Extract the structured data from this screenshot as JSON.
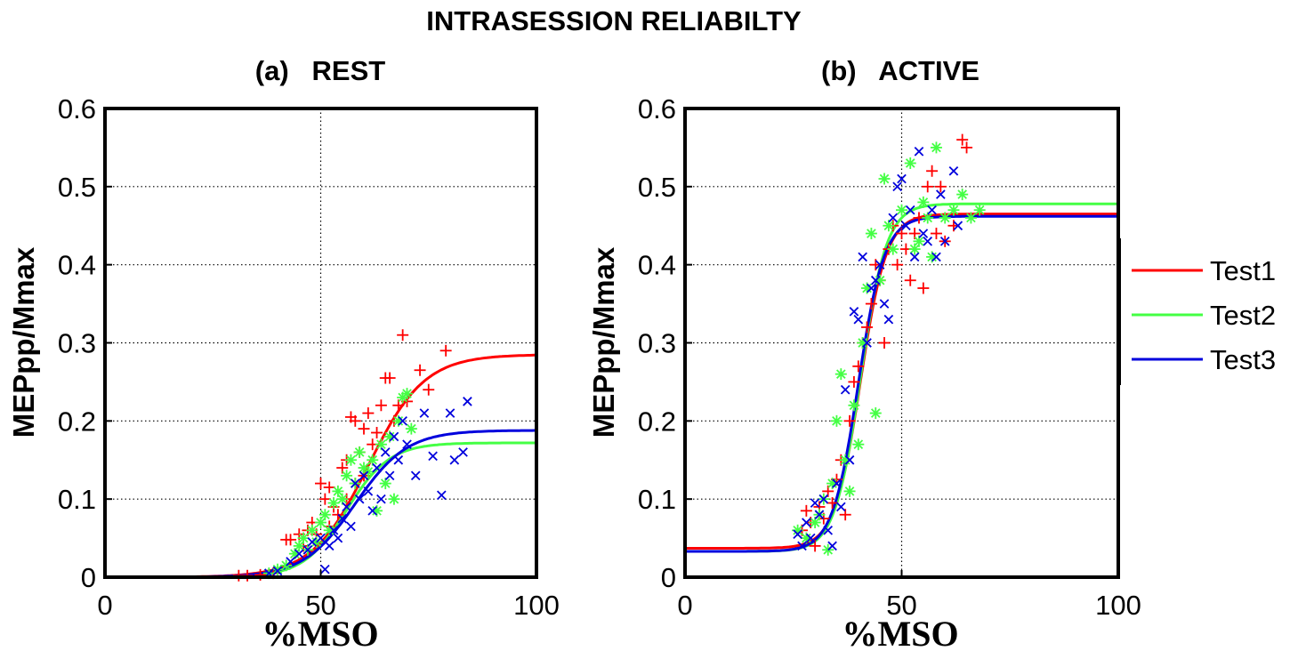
{
  "figure": {
    "title": "INTRASESSION RELIABILTY"
  },
  "colors": {
    "Test1": "#ff0000",
    "Test2": "#44ff44",
    "Test3": "#0000dd"
  },
  "legend": {
    "placement": "right",
    "entries": [
      "Test1",
      "Test2",
      "Test3"
    ]
  },
  "chart_data": [
    {
      "type": "scatter",
      "title": "(a)   REST",
      "xlabel": "%MSO",
      "ylabel": "MEPpp/Mmax",
      "xlim": [
        0,
        100
      ],
      "ylim": [
        0,
        0.6
      ],
      "xticks": [
        0,
        50,
        100
      ],
      "yticks": [
        0,
        0.1,
        0.2,
        0.3,
        0.4,
        0.5,
        0.6
      ],
      "grid": true,
      "series": [
        {
          "name": "Test1",
          "marker": "+",
          "fit": {
            "bottom": 0.0,
            "top": 0.285,
            "x50": 61,
            "slope": 6.5
          },
          "points": [
            [
              31,
              0.002
            ],
            [
              33,
              0.002
            ],
            [
              36,
              0.003
            ],
            [
              39,
              0.005
            ],
            [
              42,
              0.048
            ],
            [
              43,
              0.048
            ],
            [
              45,
              0.055
            ],
            [
              46,
              0.04
            ],
            [
              47,
              0.06
            ],
            [
              48,
              0.07
            ],
            [
              49,
              0.055
            ],
            [
              50,
              0.12
            ],
            [
              51,
              0.1
            ],
            [
              52,
              0.065
            ],
            [
              52,
              0.115
            ],
            [
              53,
              0.09
            ],
            [
              54,
              0.08
            ],
            [
              55,
              0.14
            ],
            [
              56,
              0.15
            ],
            [
              56,
              0.1
            ],
            [
              57,
              0.205
            ],
            [
              58,
              0.2
            ],
            [
              58,
              0.12
            ],
            [
              59,
              0.16
            ],
            [
              60,
              0.19
            ],
            [
              60,
              0.13
            ],
            [
              61,
              0.21
            ],
            [
              62,
              0.17
            ],
            [
              63,
              0.185
            ],
            [
              64,
              0.22
            ],
            [
              65,
              0.255
            ],
            [
              66,
              0.255
            ],
            [
              66,
              0.18
            ],
            [
              67,
              0.2
            ],
            [
              68,
              0.22
            ],
            [
              69,
              0.31
            ],
            [
              70,
              0.225
            ],
            [
              73,
              0.265
            ],
            [
              75,
              0.24
            ],
            [
              79,
              0.29
            ]
          ]
        },
        {
          "name": "Test2",
          "marker": "*",
          "fit": {
            "bottom": 0.0,
            "top": 0.172,
            "x50": 56,
            "slope": 5.0
          },
          "points": [
            [
              38,
              0.005
            ],
            [
              40,
              0.01
            ],
            [
              42,
              0.015
            ],
            [
              44,
              0.03
            ],
            [
              45,
              0.04
            ],
            [
              46,
              0.05
            ],
            [
              47,
              0.035
            ],
            [
              48,
              0.06
            ],
            [
              49,
              0.045
            ],
            [
              50,
              0.07
            ],
            [
              51,
              0.08
            ],
            [
              52,
              0.06
            ],
            [
              53,
              0.095
            ],
            [
              54,
              0.11
            ],
            [
              55,
              0.1
            ],
            [
              56,
              0.13
            ],
            [
              57,
              0.15
            ],
            [
              58,
              0.12
            ],
            [
              59,
              0.16
            ],
            [
              60,
              0.14
            ],
            [
              61,
              0.135
            ],
            [
              62,
              0.15
            ],
            [
              63,
              0.085
            ],
            [
              64,
              0.17
            ],
            [
              65,
              0.12
            ],
            [
              66,
              0.18
            ],
            [
              67,
              0.1
            ],
            [
              68,
              0.2
            ],
            [
              69,
              0.23
            ],
            [
              70,
              0.235
            ],
            [
              71,
              0.19
            ]
          ]
        },
        {
          "name": "Test3",
          "marker": "x",
          "fit": {
            "bottom": 0.0,
            "top": 0.188,
            "x50": 58,
            "slope": 6.0
          },
          "points": [
            [
              38,
              0.005
            ],
            [
              40,
              0.008
            ],
            [
              43,
              0.02
            ],
            [
              45,
              0.03
            ],
            [
              47,
              0.035
            ],
            [
              48,
              0.045
            ],
            [
              50,
              0.05
            ],
            [
              51,
              0.01
            ],
            [
              52,
              0.04
            ],
            [
              53,
              0.06
            ],
            [
              54,
              0.05
            ],
            [
              55,
              0.075
            ],
            [
              56,
              0.09
            ],
            [
              57,
              0.065
            ],
            [
              58,
              0.12
            ],
            [
              59,
              0.1
            ],
            [
              60,
              0.13
            ],
            [
              61,
              0.11
            ],
            [
              62,
              0.085
            ],
            [
              63,
              0.14
            ],
            [
              64,
              0.1
            ],
            [
              65,
              0.16
            ],
            [
              66,
              0.13
            ],
            [
              67,
              0.18
            ],
            [
              68,
              0.15
            ],
            [
              69,
              0.2
            ],
            [
              70,
              0.17
            ],
            [
              72,
              0.13
            ],
            [
              74,
              0.21
            ],
            [
              76,
              0.155
            ],
            [
              78,
              0.105
            ],
            [
              80,
              0.21
            ],
            [
              81,
              0.15
            ],
            [
              83,
              0.16
            ],
            [
              84,
              0.225
            ]
          ]
        }
      ]
    },
    {
      "type": "scatter",
      "title": "(b)   ACTIVE",
      "xlabel": "%MSO",
      "ylabel": "MEPpp/Mmax",
      "xlim": [
        0,
        100
      ],
      "ylim": [
        0,
        0.6
      ],
      "xticks": [
        0,
        50,
        100
      ],
      "yticks": [
        0,
        0.1,
        0.2,
        0.3,
        0.4,
        0.5,
        0.6
      ],
      "grid": true,
      "series": [
        {
          "name": "Test1",
          "marker": "+",
          "fit": {
            "bottom": 0.037,
            "top": 0.465,
            "x50": 40.5,
            "slope": 3.0
          },
          "points": [
            [
              27,
              0.06
            ],
            [
              28,
              0.085
            ],
            [
              29,
              0.07
            ],
            [
              30,
              0.04
            ],
            [
              31,
              0.09
            ],
            [
              32,
              0.075
            ],
            [
              33,
              0.11
            ],
            [
              34,
              0.095
            ],
            [
              35,
              0.125
            ],
            [
              36,
              0.15
            ],
            [
              37,
              0.08
            ],
            [
              38,
              0.2
            ],
            [
              39,
              0.25
            ],
            [
              40,
              0.27
            ],
            [
              41,
              0.3
            ],
            [
              42,
              0.32
            ],
            [
              43,
              0.35
            ],
            [
              44,
              0.4
            ],
            [
              45,
              0.38
            ],
            [
              46,
              0.3
            ],
            [
              47,
              0.42
            ],
            [
              48,
              0.45
            ],
            [
              49,
              0.4
            ],
            [
              50,
              0.44
            ],
            [
              51,
              0.42
            ],
            [
              52,
              0.38
            ],
            [
              53,
              0.44
            ],
            [
              54,
              0.46
            ],
            [
              55,
              0.37
            ],
            [
              56,
              0.5
            ],
            [
              57,
              0.52
            ],
            [
              58,
              0.44
            ],
            [
              59,
              0.5
            ],
            [
              60,
              0.43
            ],
            [
              62,
              0.45
            ],
            [
              64,
              0.56
            ],
            [
              65,
              0.55
            ]
          ]
        },
        {
          "name": "Test2",
          "marker": "*",
          "fit": {
            "bottom": 0.033,
            "top": 0.478,
            "x50": 40.5,
            "slope": 3.0
          },
          "points": [
            [
              26,
              0.06
            ],
            [
              28,
              0.05
            ],
            [
              30,
              0.07
            ],
            [
              31,
              0.08
            ],
            [
              32,
              0.1
            ],
            [
              33,
              0.035
            ],
            [
              34,
              0.12
            ],
            [
              35,
              0.2
            ],
            [
              36,
              0.26
            ],
            [
              37,
              0.15
            ],
            [
              38,
              0.11
            ],
            [
              39,
              0.22
            ],
            [
              40,
              0.17
            ],
            [
              41,
              0.3
            ],
            [
              42,
              0.37
            ],
            [
              43,
              0.44
            ],
            [
              44,
              0.21
            ],
            [
              45,
              0.38
            ],
            [
              46,
              0.51
            ],
            [
              47,
              0.45
            ],
            [
              48,
              0.42
            ],
            [
              50,
              0.47
            ],
            [
              52,
              0.53
            ],
            [
              53,
              0.42
            ],
            [
              54,
              0.43
            ],
            [
              55,
              0.48
            ],
            [
              56,
              0.46
            ],
            [
              57,
              0.41
            ],
            [
              58,
              0.55
            ],
            [
              60,
              0.46
            ],
            [
              62,
              0.47
            ],
            [
              64,
              0.49
            ],
            [
              66,
              0.46
            ],
            [
              68,
              0.47
            ]
          ]
        },
        {
          "name": "Test3",
          "marker": "x",
          "fit": {
            "bottom": 0.033,
            "top": 0.462,
            "x50": 40.0,
            "slope": 3.0
          },
          "points": [
            [
              26,
              0.055
            ],
            [
              27,
              0.04
            ],
            [
              28,
              0.07
            ],
            [
              29,
              0.05
            ],
            [
              30,
              0.095
            ],
            [
              31,
              0.08
            ],
            [
              32,
              0.1
            ],
            [
              33,
              0.06
            ],
            [
              34,
              0.04
            ],
            [
              35,
              0.12
            ],
            [
              36,
              0.09
            ],
            [
              37,
              0.24
            ],
            [
              38,
              0.15
            ],
            [
              39,
              0.34
            ],
            [
              40,
              0.33
            ],
            [
              41,
              0.41
            ],
            [
              42,
              0.3
            ],
            [
              43,
              0.37
            ],
            [
              44,
              0.38
            ],
            [
              45,
              0.4
            ],
            [
              46,
              0.35
            ],
            [
              47,
              0.33
            ],
            [
              48,
              0.46
            ],
            [
              49,
              0.5
            ],
            [
              50,
              0.51
            ],
            [
              51,
              0.45
            ],
            [
              52,
              0.47
            ],
            [
              53,
              0.41
            ],
            [
              54,
              0.545
            ],
            [
              55,
              0.44
            ],
            [
              56,
              0.43
            ],
            [
              57,
              0.47
            ],
            [
              58,
              0.41
            ],
            [
              59,
              0.49
            ],
            [
              60,
              0.43
            ],
            [
              62,
              0.52
            ],
            [
              63,
              0.45
            ]
          ]
        }
      ]
    }
  ]
}
